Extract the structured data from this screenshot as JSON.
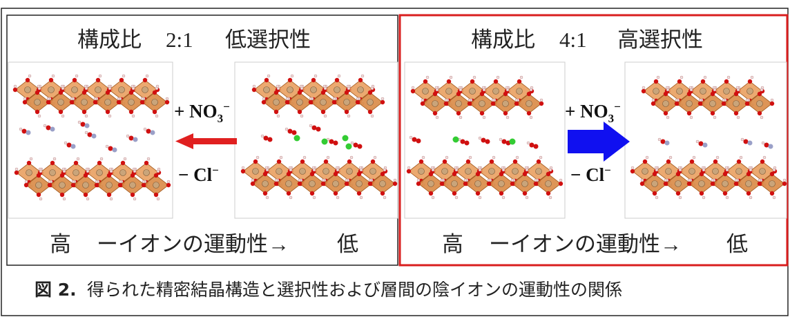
{
  "panels": [
    {
      "title": {
        "name": "構成比",
        "ratio": "2:1",
        "selectivity": "低選択性"
      },
      "added": {
        "sign": "+ NO",
        "sub": "3",
        "sup": "−"
      },
      "removed": {
        "sign": "− Cl",
        "sup": "−"
      },
      "mobility": {
        "high": "高",
        "label": "ーイオンの運動性→",
        "low": "低"
      }
    },
    {
      "title": {
        "name": "構成比",
        "ratio": "4:1",
        "selectivity": "高選択性"
      },
      "added": {
        "sign": "+ NO",
        "sub": "3",
        "sup": "−"
      },
      "removed": {
        "sign": "− Cl",
        "sup": "−"
      },
      "mobility": {
        "high": "高",
        "label": "ーイオンの運動性→",
        "low": "低"
      }
    }
  ],
  "caption": {
    "label": "図 2.",
    "text": "得られた精密結晶構造と選択性および層間の陰イオンの運動性の関係"
  }
}
